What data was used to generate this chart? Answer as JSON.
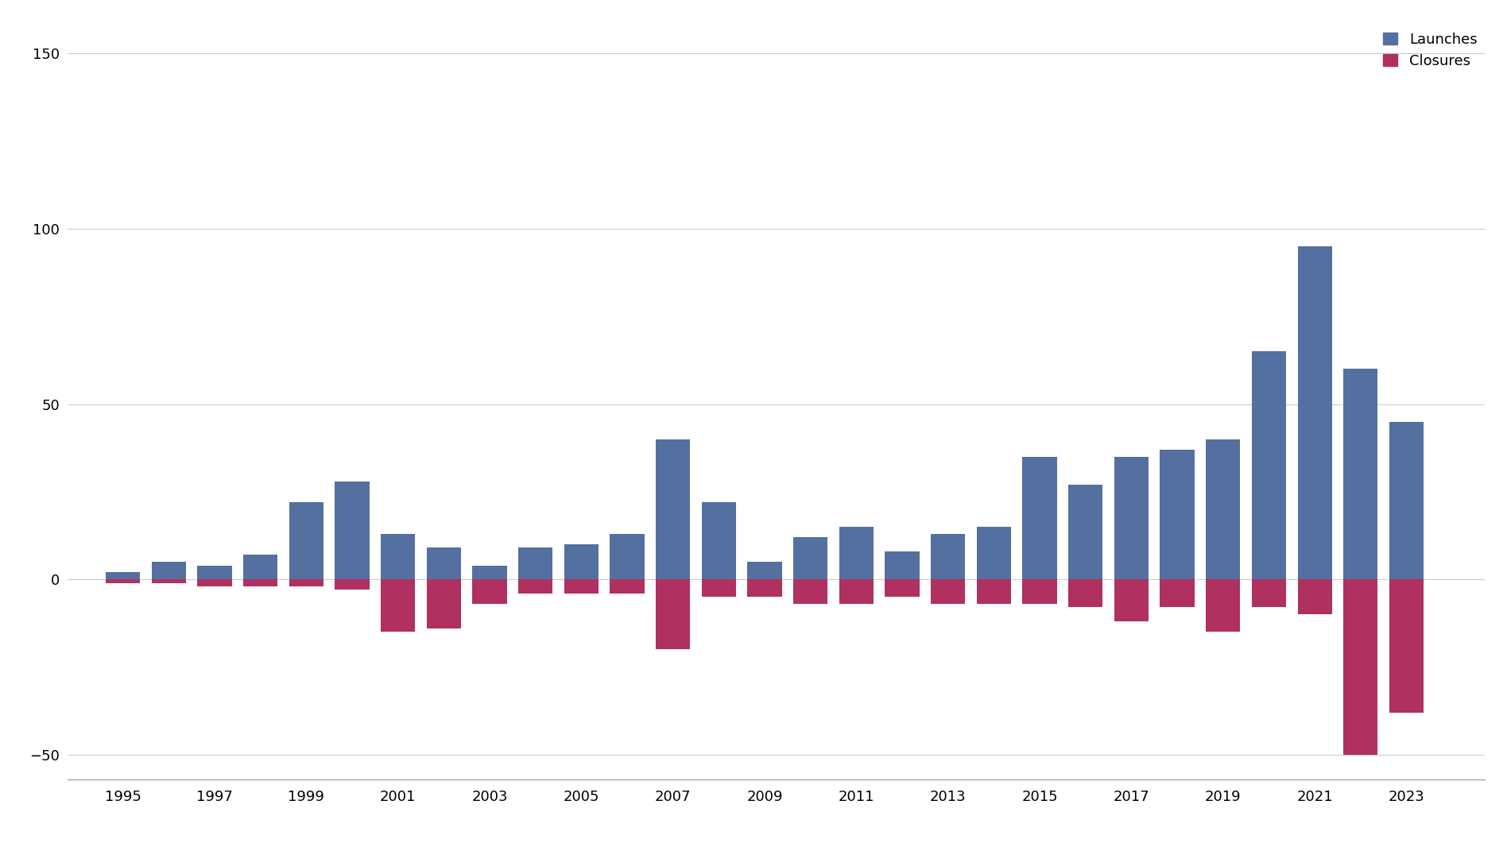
{
  "years": [
    1995,
    1996,
    1997,
    1998,
    1999,
    2000,
    2001,
    2002,
    2003,
    2004,
    2005,
    2006,
    2007,
    2008,
    2009,
    2010,
    2011,
    2012,
    2013,
    2014,
    2015,
    2016,
    2017,
    2018,
    2019,
    2020,
    2021,
    2022,
    2023
  ],
  "launches": [
    2,
    5,
    4,
    7,
    22,
    28,
    13,
    9,
    4,
    9,
    10,
    13,
    40,
    22,
    5,
    12,
    15,
    8,
    13,
    15,
    35,
    27,
    35,
    37,
    40,
    65,
    95,
    60,
    45
  ],
  "closures": [
    -1,
    -1,
    -2,
    -2,
    -2,
    -3,
    -15,
    -14,
    -7,
    -4,
    -4,
    -4,
    -20,
    -5,
    -5,
    -7,
    -7,
    -5,
    -7,
    -7,
    -7,
    -8,
    -12,
    -8,
    -15,
    -8,
    -10,
    -50,
    -38
  ],
  "launch_color": "#5470a0",
  "closure_color": "#b03060",
  "background_color": "#ffffff",
  "ylim": [
    -57,
    158
  ],
  "yticks": [
    -50,
    0,
    50,
    100,
    150
  ],
  "ytick_labels": [
    "−50",
    "0",
    "50",
    "100",
    "150"
  ],
  "legend_labels": [
    "Launches",
    "Closures"
  ],
  "bar_width": 0.75
}
